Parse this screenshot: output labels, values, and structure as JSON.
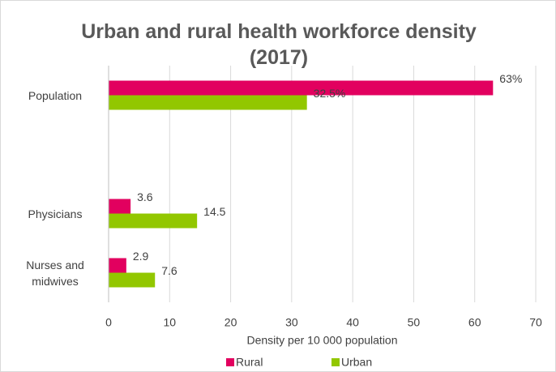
{
  "chart_data": {
    "type": "barh",
    "title": "Urban and rural health workforce density (2017)",
    "categories": [
      "Population",
      null,
      "Physicians",
      "Nurses and midwives"
    ],
    "series": [
      {
        "name": "Rural",
        "color": "#e2005f",
        "values": [
          63,
          null,
          3.6,
          2.9
        ],
        "value_labels": [
          "63%",
          null,
          "3.6",
          "2.9"
        ]
      },
      {
        "name": "Urban",
        "color": "#92c700",
        "values": [
          32.5,
          null,
          14.5,
          7.6
        ],
        "value_labels": [
          "32.5%",
          null,
          "14.5",
          "7.6"
        ]
      }
    ],
    "xlabel": "Density per 10 000 population",
    "xlim": [
      0,
      70
    ],
    "xticks": [
      0,
      10,
      20,
      30,
      40,
      50,
      60,
      70
    ],
    "grid": true,
    "legend": "bottom"
  }
}
